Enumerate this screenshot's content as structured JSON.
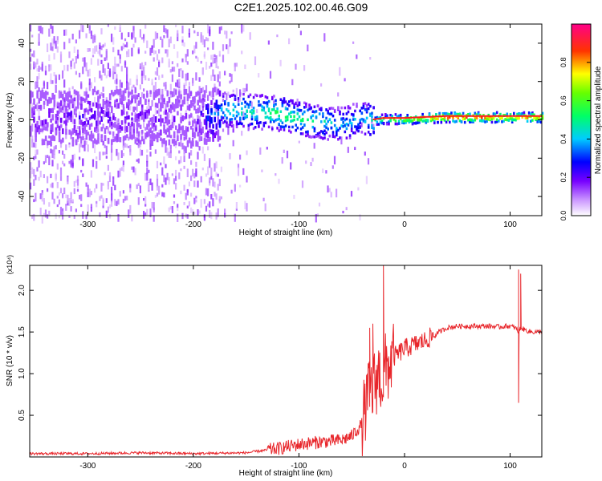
{
  "title": "C2E1.2025.102.00.46.G09",
  "chart_data": [
    {
      "type": "heatmap",
      "xlabel": "Height of straight line (km)",
      "ylabel": "Frequency (Hz)",
      "xlim": [
        -355,
        130
      ],
      "ylim": [
        -50,
        50
      ],
      "xticks": [
        -300,
        -200,
        -100,
        0,
        100
      ],
      "yticks": [
        -40,
        -20,
        0,
        20,
        40
      ],
      "colorbar": {
        "label": "Normalized spectral amplitude",
        "range": [
          0,
          1
        ],
        "ticks": [
          "0.0",
          "0.2",
          "0.4",
          "0.6",
          "0.8"
        ],
        "colors": [
          "#ffffff",
          "#7700ff",
          "#0000ff",
          "#00ffff",
          "#00ff00",
          "#ffff00",
          "#ff0000",
          "#ff0088"
        ]
      },
      "ridge": {
        "x": [
          -355,
          -300,
          -250,
          -200,
          -170,
          -140,
          -120,
          -100,
          -80,
          -60,
          -40,
          -32,
          -20,
          0,
          40,
          80,
          100,
          130
        ],
        "y": [
          2,
          3,
          3,
          2,
          6,
          5,
          4,
          1,
          0,
          -2,
          2,
          0,
          1,
          1,
          2,
          2,
          2,
          2
        ],
        "amplitude": [
          0.15,
          0.18,
          0.15,
          0.14,
          0.45,
          0.5,
          0.55,
          0.5,
          0.45,
          0.4,
          0.4,
          0.5,
          0.6,
          0.7,
          0.9,
          0.85,
          0.8,
          0.8
        ]
      }
    },
    {
      "type": "line",
      "xlabel": "Height of straight line (km)",
      "ylabel": "SNR (10 * v/v)",
      "scale_label": "(x10⁴)",
      "xlim": [
        -355,
        130
      ],
      "ylim": [
        0,
        2.3
      ],
      "xticks": [
        -300,
        -200,
        -100,
        0,
        100
      ],
      "yticks": [
        "0.5",
        "1.0",
        "1.5",
        "2.0"
      ],
      "color": "#e8262b",
      "series": [
        {
          "x": [
            -355,
            -300,
            -250,
            -200,
            -150,
            -120,
            -100,
            -80,
            -60,
            -50,
            -40,
            -35,
            -30,
            -25,
            -20,
            -18,
            -15,
            -10,
            0,
            10,
            20,
            30,
            40,
            50,
            60,
            80,
            90,
            95,
            100,
            105,
            108,
            110,
            115,
            120,
            130
          ],
          "y": [
            0.04,
            0.04,
            0.05,
            0.04,
            0.05,
            0.1,
            0.15,
            0.18,
            0.2,
            0.25,
            0.4,
            0.7,
            0.8,
            1.0,
            0.9,
            1.05,
            1.1,
            1.2,
            1.3,
            1.35,
            1.4,
            1.48,
            1.55,
            1.57,
            1.57,
            1.57,
            1.56,
            1.57,
            1.57,
            1.55,
            1.5,
            1.55,
            1.52,
            1.5,
            1.5
          ]
        }
      ],
      "spikes": [
        {
          "x": -20,
          "y": 2.3
        },
        {
          "x": -33,
          "y": 1.55
        },
        {
          "x": -30,
          "y": 1.6
        },
        {
          "x": 108,
          "y": 2.25
        },
        {
          "x": 110,
          "y": 2.2
        },
        {
          "x": 108,
          "y": 0.65
        }
      ]
    }
  ]
}
